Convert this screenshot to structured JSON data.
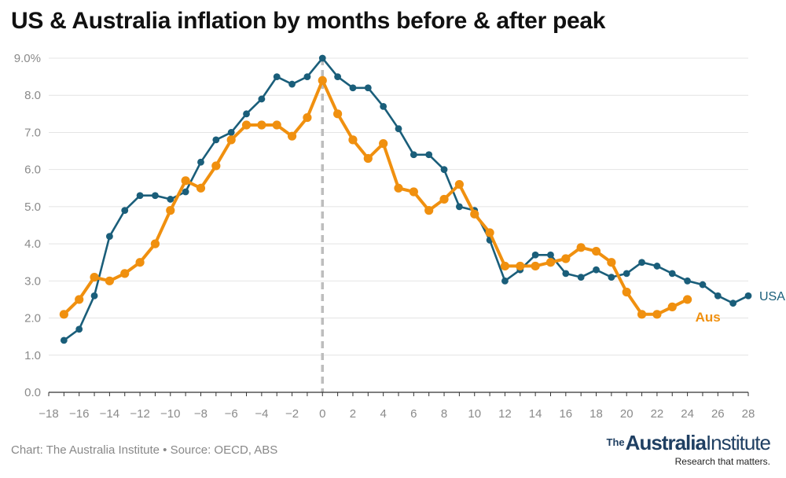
{
  "chart_data": {
    "type": "line",
    "title": "US & Australia inflation by months before & after peak",
    "xlabel": "",
    "ylabel": "",
    "xlim": [
      -18,
      28
    ],
    "ylim": [
      0,
      9
    ],
    "x_ticks": [
      "−18",
      "−16",
      "−14",
      "−12",
      "−10",
      "−8",
      "−6",
      "−4",
      "−2",
      "0",
      "2",
      "4",
      "6",
      "8",
      "10",
      "12",
      "14",
      "16",
      "18",
      "20",
      "22",
      "24",
      "26",
      "28"
    ],
    "y_ticks": [
      "9.0%",
      "8.0",
      "7.0",
      "6.0",
      "5.0",
      "4.0",
      "3.0",
      "2.0",
      "1.0",
      "0.0"
    ],
    "grid": true,
    "peak_marker_x": 0,
    "series": [
      {
        "name": "USA",
        "color": "#1a5e7a",
        "x": [
          -17,
          -16,
          -15,
          -14,
          -13,
          -12,
          -11,
          -10,
          -9,
          -8,
          -7,
          -6,
          -5,
          -4,
          -3,
          -2,
          -1,
          0,
          1,
          2,
          3,
          4,
          5,
          6,
          7,
          8,
          9,
          10,
          11,
          12,
          13,
          14,
          15,
          16,
          17,
          18,
          19,
          20,
          21,
          22,
          23,
          24,
          25,
          26,
          27,
          28
        ],
        "values": [
          1.4,
          1.7,
          2.6,
          4.2,
          4.9,
          5.3,
          5.3,
          5.2,
          5.4,
          6.2,
          6.8,
          7.0,
          7.5,
          7.9,
          8.5,
          8.3,
          8.5,
          9.0,
          8.5,
          8.2,
          8.2,
          7.7,
          7.1,
          6.4,
          6.4,
          6.0,
          5.0,
          4.9,
          4.1,
          3.0,
          3.3,
          3.7,
          3.7,
          3.2,
          3.1,
          3.3,
          3.1,
          3.2,
          3.5,
          3.4,
          3.2,
          3.0,
          2.9,
          2.6,
          2.4,
          2.6
        ]
      },
      {
        "name": "Aus",
        "color": "#f0900f",
        "x": [
          -17,
          -16,
          -15,
          -14,
          -13,
          -12,
          -11,
          -10,
          -9,
          -8,
          -7,
          -6,
          -5,
          -4,
          -3,
          -2,
          -1,
          0,
          1,
          2,
          3,
          4,
          5,
          6,
          7,
          8,
          9,
          10,
          11,
          12,
          13,
          14,
          15,
          16,
          17,
          18,
          19,
          20,
          21,
          22,
          23,
          24
        ],
        "values": [
          2.1,
          2.5,
          3.1,
          3.0,
          3.2,
          3.5,
          4.0,
          4.9,
          5.7,
          5.5,
          6.1,
          6.8,
          7.2,
          7.2,
          7.2,
          6.9,
          7.4,
          8.4,
          7.5,
          6.8,
          6.3,
          6.7,
          5.5,
          5.4,
          4.9,
          5.2,
          5.6,
          4.8,
          4.3,
          3.4,
          3.4,
          3.4,
          3.5,
          3.6,
          3.9,
          3.8,
          3.5,
          2.7,
          2.1,
          2.1,
          2.3,
          2.5
        ]
      }
    ]
  },
  "footer": {
    "source": "Chart: The Australia Institute • Source: OECD, ABS",
    "brand_the": "The",
    "brand_name": "Australia",
    "brand_name2": "Institute",
    "brand_tagline": "Research that matters."
  }
}
